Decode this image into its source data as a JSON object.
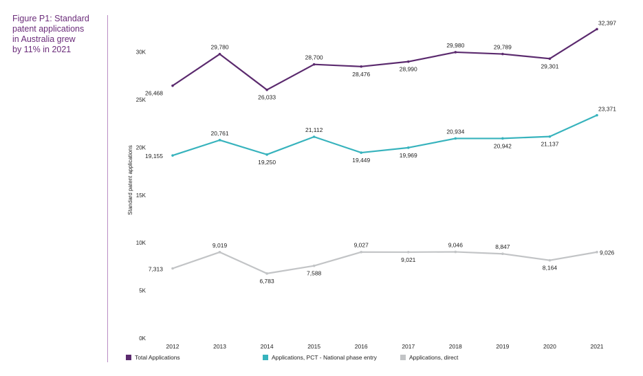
{
  "caption": {
    "lines": [
      "Figure P1: Standard",
      "patent applications",
      "in Australia grew",
      "by 11% in 2021"
    ]
  },
  "chart_data": {
    "type": "line",
    "title": "Figure P1: Standard patent applications in Australia grew by 11% in 2021",
    "ylabel": "Standard patent applications",
    "xlabel": "",
    "ylim": [
      0,
      33000
    ],
    "ytick_values": [
      0,
      5000,
      10000,
      15000,
      20000,
      25000,
      30000
    ],
    "ytick_labels": [
      "0K",
      "5K",
      "10K",
      "15K",
      "20K",
      "25K",
      "30K"
    ],
    "x": [
      "2012",
      "2013",
      "2014",
      "2015",
      "2016",
      "2017",
      "2018",
      "2019",
      "2020",
      "2021"
    ],
    "grid": false,
    "legend_position": "bottom",
    "series": [
      {
        "name": "Total Applications",
        "color": "#5b2a6e",
        "values": [
          26468,
          29780,
          26033,
          28700,
          28476,
          28990,
          29980,
          29789,
          29301,
          32397
        ],
        "labels": [
          "26,468",
          "29,780",
          "26,033",
          "28,700",
          "28,476",
          "28,990",
          "29,980",
          "29,789",
          "29,301",
          "32,397"
        ]
      },
      {
        "name": "Applications, PCT - National phase entry",
        "color": "#37b3bd",
        "values": [
          19155,
          20761,
          19250,
          21112,
          19449,
          19969,
          20934,
          20942,
          21137,
          23371
        ],
        "labels": [
          "19,155",
          "20,761",
          "19,250",
          "21,112",
          "19,449",
          "19,969",
          "20,934",
          "20,942",
          "21,137",
          "23,371"
        ]
      },
      {
        "name": "Applications, direct",
        "color": "#c2c4c6",
        "values": [
          7313,
          9019,
          6783,
          7588,
          9027,
          9021,
          9046,
          8847,
          8164,
          9026
        ],
        "labels": [
          "7,313",
          "9,019",
          "6,783",
          "7,588",
          "9,027",
          "9,021",
          "9,046",
          "8,847",
          "8,164",
          "9,026"
        ]
      }
    ]
  }
}
